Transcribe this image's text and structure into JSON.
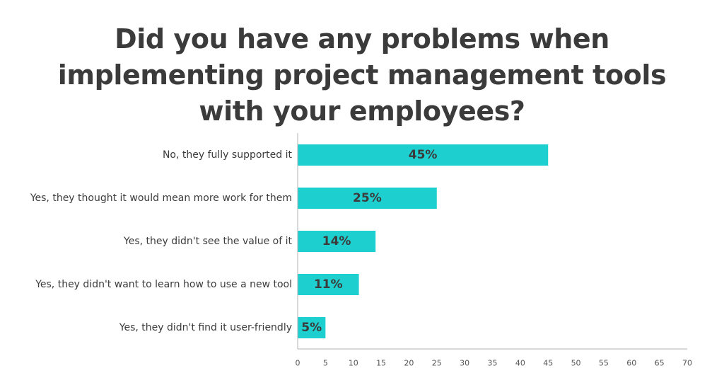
{
  "chart_data": {
    "type": "bar",
    "orientation": "horizontal",
    "title_lines": [
      "Did you have any problems when",
      "implementing project management tools",
      "with your employees?"
    ],
    "categories": [
      "No, they fully supported it",
      "Yes, they thought it would mean more work for them",
      "Yes, they didn't see the value of it",
      "Yes, they didn't want to learn how to use a new tool",
      "Yes, they didn't find it user-friendly"
    ],
    "values": [
      45,
      25,
      14,
      11,
      5
    ],
    "value_labels": [
      "45%",
      "25%",
      "14%",
      "11%",
      "5%"
    ],
    "xlim": [
      0,
      70
    ],
    "xticks": [
      0,
      5,
      10,
      15,
      20,
      25,
      30,
      35,
      40,
      45,
      50,
      55,
      60,
      65,
      70
    ],
    "grid": false,
    "legend": "none",
    "bar_color": "#1ecfcf",
    "axis_color": "#b0b0b0",
    "text_color": "#3b3b3b"
  }
}
